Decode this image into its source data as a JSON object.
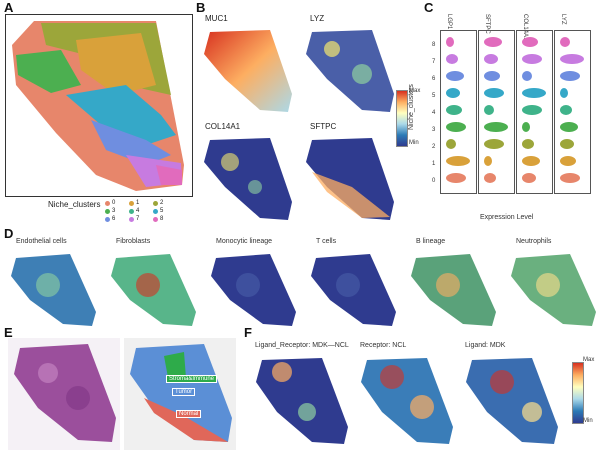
{
  "panels": {
    "A": {
      "letter": "A",
      "legend_title": "Niche_clusters",
      "legend_items": [
        {
          "label": "0",
          "color": "#e7866b"
        },
        {
          "label": "1",
          "color": "#d9a13a"
        },
        {
          "label": "2",
          "color": "#9ca63a"
        },
        {
          "label": "3",
          "color": "#4caf50"
        },
        {
          "label": "4",
          "color": "#3fb38a"
        },
        {
          "label": "5",
          "color": "#35a8c8"
        },
        {
          "label": "6",
          "color": "#6f8ee0"
        },
        {
          "label": "7",
          "color": "#c77be0"
        },
        {
          "label": "8",
          "color": "#e16bbd"
        }
      ]
    },
    "B": {
      "letter": "B",
      "genes": [
        "MUC1",
        "LYZ",
        "COL14A1",
        "SFTPC"
      ],
      "colorbar_max": "Max",
      "colorbar_min": "Min"
    },
    "C": {
      "letter": "C",
      "genes": [
        "LGP1",
        "SFTPC",
        "COL14A1",
        "LYZ"
      ],
      "y_label": "Niche_clusters",
      "x_label": "Expression Level",
      "clusters": [
        "8",
        "7",
        "6",
        "5",
        "4",
        "3",
        "2",
        "1",
        "0"
      ],
      "colors": [
        "#e16bbd",
        "#c77be0",
        "#6f8ee0",
        "#35a8c8",
        "#3fb38a",
        "#4caf50",
        "#9ca63a",
        "#d9a13a",
        "#e7866b"
      ]
    },
    "D": {
      "letter": "D",
      "cell_types": [
        "Endothelial cells",
        "Fibroblasts",
        "Monocytic lineage",
        "T cells",
        "B lineage",
        "Neutrophils"
      ]
    },
    "E": {
      "letter": "E",
      "regions": [
        "Stroma&Immune",
        "Tumor",
        "Normal"
      ]
    },
    "F": {
      "letter": "F",
      "titles": [
        "Ligand_Receptor: MDK—NCL",
        "Receptor: NCL",
        "Ligand: MDK"
      ],
      "colorbar_max": "Max",
      "colorbar_min": "Min"
    }
  }
}
